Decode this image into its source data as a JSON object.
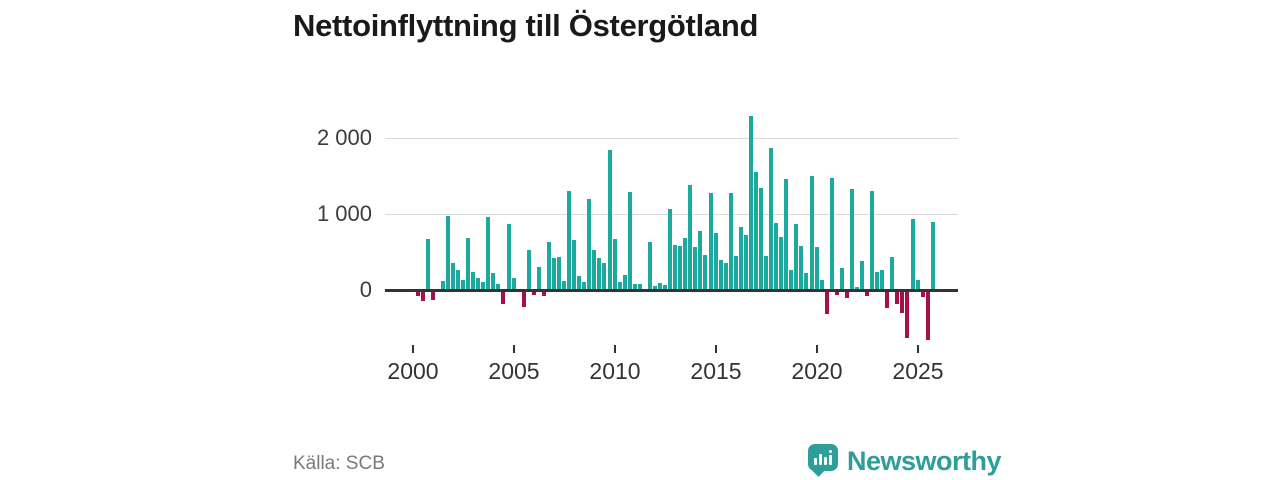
{
  "title": "Nettoinflyttning till Östergötland",
  "source": "Källa: SCB",
  "branding": {
    "name": "Newsworthy",
    "icon": "newsworthy-bubble-chart-icon"
  },
  "colors": {
    "positive_bar": "#1ea9a0",
    "negative_bar": "#a51048",
    "gridline": "#d9d9d9",
    "zero_line": "#333333",
    "brand": "#2e9e98",
    "title_text": "#1a1a1a",
    "axis_text": "#3d3d3d",
    "source_text": "#7a7a7a"
  },
  "chart_data": {
    "type": "bar",
    "title": "Nettoinflyttning till Östergötland",
    "frequency": "quarterly",
    "period_start": "2000-Q1",
    "period_end": "2025-Q3",
    "grid": "horizontal",
    "legend": "none",
    "ylim": [
      -700,
      2400
    ],
    "y_ticks": [
      {
        "label": "2 000",
        "value": 2000
      },
      {
        "label": "1 000",
        "value": 1000
      },
      {
        "label": "0",
        "value": 0
      }
    ],
    "x_ticks": [
      "2000",
      "2005",
      "2010",
      "2015",
      "2020",
      "2025"
    ],
    "values": [
      -75,
      -140,
      670,
      -130,
      0,
      120,
      975,
      360,
      265,
      130,
      690,
      240,
      155,
      110,
      955,
      220,
      80,
      -180,
      870,
      160,
      0,
      -220,
      520,
      -60,
      305,
      -80,
      630,
      415,
      440,
      120,
      1300,
      660,
      190,
      110,
      1200,
      525,
      415,
      360,
      1840,
      665,
      110,
      200,
      1295,
      80,
      75,
      0,
      635,
      55,
      95,
      65,
      1060,
      590,
      585,
      680,
      1380,
      570,
      770,
      460,
      1270,
      750,
      400,
      350,
      1280,
      445,
      825,
      725,
      2290,
      1555,
      1340,
      445,
      1875,
      885,
      700,
      1460,
      265,
      875,
      580,
      220,
      1500,
      570,
      130,
      -310,
      1470,
      -65,
      285,
      -100,
      1330,
      35,
      380,
      -75,
      1300,
      240,
      260,
      -240,
      430,
      -185,
      -305,
      -625,
      940,
      130,
      -95,
      -660,
      900
    ]
  }
}
